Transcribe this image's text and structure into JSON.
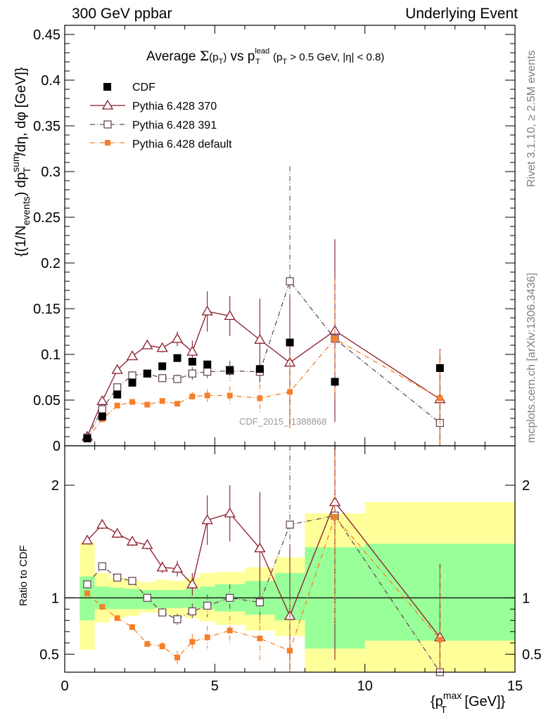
{
  "header": {
    "left": "300 GeV ppbar",
    "right": "Underlying Event"
  },
  "side_labels": {
    "rivet": "Rivet 3.1.10, ≥ 2.5M events",
    "mcplots": "mcplots.cern.ch [arXiv:1306.3436]"
  },
  "watermark": "CDF_2015_I1388868",
  "colors": {
    "cdf": "#000000",
    "p370": "#8b1a2b",
    "p391": "#6b4a5e",
    "pdef": "#f57f2a",
    "band_inner": "#99ff99",
    "band_outer": "#ffff99"
  },
  "chart_data": [
    {
      "type": "scatter",
      "title_parts": {
        "pre": "Average ",
        "sigma": "Σ",
        "paren1": "(p",
        "sub_t": "T",
        "paren2": ")",
        "vs": " vs p",
        "sup_lead": "lead",
        "sub_t2": "T",
        "cut1": " (p",
        "sub_t3": "T",
        "cut2": " > 0.5 GeV, |η| < 0.8)"
      },
      "ylabel_parts": {
        "a": "{(1/N",
        "a_sub": "events",
        "b": ") dp",
        "b_sup": "sum",
        "b_sub": "T",
        "c": "/dη, dφ [GeV]}"
      },
      "xlim": [
        0,
        15
      ],
      "ylim": [
        0,
        0.46
      ],
      "yticks": [
        "0",
        "0.05",
        "0.1",
        "0.15",
        "0.2",
        "0.25",
        "0.3",
        "0.35",
        "0.4",
        "0.45"
      ],
      "series": [
        {
          "name": "CDF",
          "marker": "filled-square",
          "x": [
            0.75,
            1.25,
            1.75,
            2.25,
            2.75,
            3.25,
            3.75,
            4.25,
            4.75,
            5.5,
            6.5,
            7.5,
            9.0,
            12.5
          ],
          "y": [
            0.008,
            0.032,
            0.056,
            0.069,
            0.079,
            0.087,
            0.096,
            0.092,
            0.089,
            0.083,
            0.084,
            0.113,
            0.07,
            0.085
          ],
          "err": [
            0,
            0,
            0,
            0,
            0,
            0,
            0,
            0,
            0,
            0,
            0,
            0,
            0,
            0
          ]
        },
        {
          "name": "Pythia 6.428 370",
          "marker": "open-triangle",
          "line": "solid",
          "x": [
            0.75,
            1.25,
            1.75,
            2.25,
            2.75,
            3.25,
            3.75,
            4.25,
            4.75,
            5.5,
            6.5,
            7.5,
            9.0,
            12.5
          ],
          "y": [
            0.01,
            0.049,
            0.083,
            0.098,
            0.11,
            0.107,
            0.117,
            0.103,
            0.147,
            0.142,
            0.116,
            0.091,
            0.126,
            0.051
          ],
          "err": [
            0.001,
            0.002,
            0.003,
            0.003,
            0.003,
            0.005,
            0.008,
            0.012,
            0.022,
            0.022,
            0.045,
            0.07,
            0.1,
            0.055
          ]
        },
        {
          "name": "Pythia 6.428 391",
          "marker": "open-square",
          "line": "dashdot",
          "x": [
            0.75,
            1.25,
            1.75,
            2.25,
            2.75,
            3.25,
            3.75,
            4.25,
            4.75,
            5.5,
            6.5,
            7.5,
            9.0,
            12.5
          ],
          "y": [
            0.009,
            0.04,
            0.064,
            0.077,
            0.079,
            0.074,
            0.073,
            0.079,
            0.081,
            0.082,
            0.081,
            0.18,
            0.117,
            0.025
          ],
          "err": [
            0.001,
            0.002,
            0.002,
            0.003,
            0.003,
            0.004,
            0.005,
            0.007,
            0.009,
            0.011,
            0.015,
            0.126,
            0.05,
            0.03
          ]
        },
        {
          "name": "Pythia 6.428 default",
          "marker": "small-filled-square",
          "line": "dashdot",
          "x": [
            0.75,
            1.25,
            1.75,
            2.25,
            2.75,
            3.25,
            3.75,
            4.25,
            4.75,
            5.5,
            6.5,
            7.5,
            9.0,
            12.5
          ],
          "y": [
            0.008,
            0.029,
            0.044,
            0.048,
            0.045,
            0.049,
            0.046,
            0.054,
            0.055,
            0.055,
            0.052,
            0.059,
            0.117,
            0.052
          ],
          "err": [
            0.001,
            0.002,
            0.002,
            0.002,
            0.002,
            0.002,
            0.003,
            0.005,
            0.007,
            0.01,
            0.015,
            0.04,
            0.065,
            0.052
          ]
        }
      ]
    },
    {
      "type": "scatter",
      "ylabel": "Ratio to CDF",
      "xlabel_parts": {
        "a": "{p",
        "sup": "max",
        "sub": "T",
        "b": " [GeV]}"
      },
      "xlim": [
        0,
        15
      ],
      "ylim": [
        0.34,
        2.35
      ],
      "xticks": [
        "0",
        "5",
        "10",
        "15"
      ],
      "yticks": [
        "0.5",
        "1",
        "2"
      ],
      "band": {
        "edges": [
          0.5,
          1.0,
          1.5,
          2.0,
          2.5,
          3.0,
          3.5,
          4.0,
          4.5,
          5.0,
          6.0,
          7.0,
          8.0,
          10.0,
          15.0
        ],
        "inner_lo": [
          0.8,
          0.9,
          0.9,
          0.9,
          0.9,
          0.91,
          0.91,
          0.91,
          0.9,
          0.88,
          0.85,
          0.8,
          0.55,
          0.62
        ],
        "inner_hi": [
          1.19,
          1.1,
          1.09,
          1.08,
          1.07,
          1.07,
          1.07,
          1.08,
          1.1,
          1.12,
          1.15,
          1.22,
          1.45,
          1.48
        ],
        "outer_lo": [
          0.54,
          0.78,
          0.82,
          0.84,
          0.87,
          0.86,
          0.84,
          0.82,
          0.79,
          0.76,
          0.71,
          0.66,
          0.0,
          0.0
        ],
        "outer_hi": [
          1.49,
          1.22,
          1.18,
          1.16,
          1.14,
          1.16,
          1.15,
          1.18,
          1.22,
          1.23,
          1.27,
          1.36,
          1.75,
          1.85
        ]
      },
      "series": [
        {
          "name": "Pythia 6.428 370",
          "marker": "open-triangle",
          "line": "solid",
          "x": [
            0.75,
            1.25,
            1.75,
            2.25,
            2.75,
            3.25,
            3.75,
            4.25,
            4.75,
            5.5,
            6.5,
            7.5,
            9.0,
            12.5
          ],
          "y": [
            1.51,
            1.65,
            1.57,
            1.5,
            1.47,
            1.27,
            1.26,
            1.12,
            1.69,
            1.75,
            1.44,
            0.84,
            1.85,
            0.65
          ],
          "err": [
            0.03,
            0.04,
            0.04,
            0.04,
            0.04,
            0.05,
            0.07,
            0.1,
            0.22,
            0.25,
            0.5,
            0.6,
            1.4,
            0.65
          ]
        },
        {
          "name": "Pythia 6.428 391",
          "marker": "open-square",
          "line": "dashdot",
          "x": [
            0.75,
            1.25,
            1.75,
            2.25,
            2.75,
            3.25,
            3.75,
            4.25,
            4.75,
            5.5,
            6.5,
            7.5,
            9.0,
            12.5
          ],
          "y": [
            1.12,
            1.28,
            1.18,
            1.15,
            1.0,
            0.87,
            0.81,
            0.88,
            0.93,
            1.0,
            0.96,
            1.65,
            1.73,
            0.28
          ],
          "err": [
            0.02,
            0.03,
            0.03,
            0.03,
            0.03,
            0.04,
            0.05,
            0.07,
            0.1,
            0.12,
            0.18,
            1.1,
            0.7,
            0.35
          ]
        },
        {
          "name": "Pythia 6.428 default",
          "marker": "small-filled-square",
          "line": "dashdot",
          "x": [
            0.75,
            1.25,
            1.75,
            2.25,
            2.75,
            3.25,
            3.75,
            4.25,
            4.75,
            5.5,
            6.5,
            7.5,
            9.0,
            12.5
          ],
          "y": [
            1.04,
            0.92,
            0.82,
            0.74,
            0.59,
            0.57,
            0.47,
            0.61,
            0.65,
            0.71,
            0.64,
            0.53,
            1.72,
            0.63
          ],
          "err": [
            0.02,
            0.02,
            0.02,
            0.03,
            0.03,
            0.04,
            0.06,
            0.07,
            0.1,
            0.13,
            0.2,
            0.45,
            0.95,
            0.63
          ]
        }
      ]
    }
  ]
}
